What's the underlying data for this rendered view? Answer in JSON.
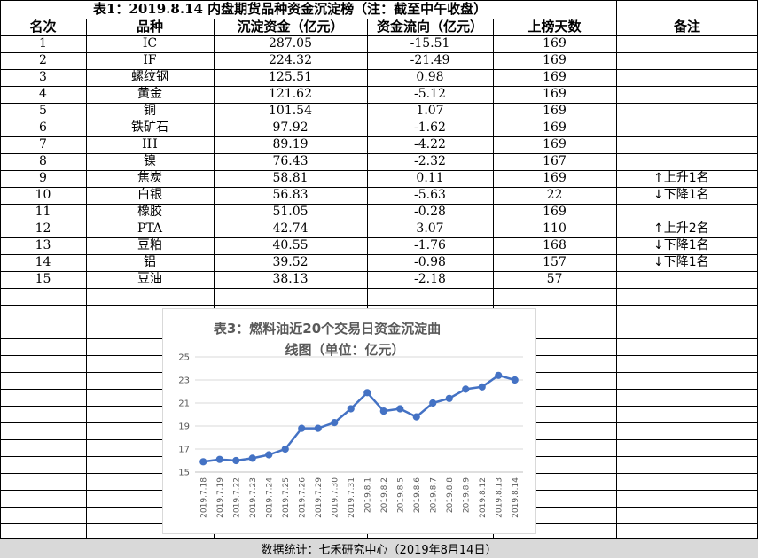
{
  "title": "表1：2019.8.14 内盘期货品种资金沉淀榜（注：截至中午收盘）",
  "headers": [
    "名次",
    "品种",
    "沉淀资金（亿元）",
    "资金流向（亿元）",
    "上榜天数",
    "备注"
  ],
  "rows": [
    [
      "1",
      "IC",
      "287.05",
      "-15.51",
      "169",
      ""
    ],
    [
      "2",
      "IF",
      "224.32",
      "-21.49",
      "169",
      ""
    ],
    [
      "3",
      "螺纹钢",
      "125.51",
      "0.98",
      "169",
      ""
    ],
    [
      "4",
      "黄金",
      "121.62",
      "-5.12",
      "169",
      ""
    ],
    [
      "5",
      "铜",
      "101.54",
      "1.07",
      "169",
      ""
    ],
    [
      "6",
      "铁矿石",
      "97.92",
      "-1.62",
      "169",
      ""
    ],
    [
      "7",
      "IH",
      "89.19",
      "-4.22",
      "169",
      ""
    ],
    [
      "8",
      "镍",
      "76.43",
      "-2.32",
      "167",
      ""
    ],
    [
      "9",
      "焦炭",
      "58.81",
      "0.11",
      "169",
      "↑上升1名"
    ],
    [
      "10",
      "白银",
      "56.83",
      "-5.63",
      "22",
      "↓下降1名"
    ],
    [
      "11",
      "橡胶",
      "51.05",
      "-0.28",
      "169",
      ""
    ],
    [
      "12",
      "PTA",
      "42.74",
      "3.07",
      "110",
      "↑上升2名"
    ],
    [
      "13",
      "豆粕",
      "40.55",
      "-1.76",
      "168",
      "↓下降1名"
    ],
    [
      "14",
      "铝",
      "39.52",
      "-0.98",
      "157",
      "↓下降1名"
    ],
    [
      "15",
      "豆油",
      "38.13",
      "-2.18",
      "57",
      ""
    ]
  ],
  "footer": "数据统计：七禾研究中心（2019年8月14日）",
  "chart_data": {
    "type": "line",
    "title_lines": [
      "表3：燃料油近20个交易日资金沉淀曲",
      "线图（单位：亿元）"
    ],
    "categories": [
      "2019.7.18",
      "2019.7.19",
      "2019.7.22",
      "2019.7.23",
      "2019.7.24",
      "2019.7.25",
      "2019.7.26",
      "2019.7.29",
      "2019.7.30",
      "2019.7.31",
      "2019.8.1",
      "2019.8.2",
      "2019.8.5",
      "2019.8.6",
      "2019.8.7",
      "2019.8.8",
      "2019.8.9",
      "2019.8.12",
      "2019.8.13",
      "2019.8.14"
    ],
    "values": [
      15.9,
      16.1,
      16.0,
      16.2,
      16.5,
      17.0,
      18.8,
      18.8,
      19.3,
      20.5,
      21.9,
      20.3,
      20.5,
      19.8,
      21.0,
      21.4,
      22.2,
      22.4,
      23.4,
      23.0
    ],
    "yticks": [
      "15",
      "17",
      "19",
      "21",
      "23",
      "25"
    ],
    "ylim": [
      15,
      25
    ],
    "line_color": "#4472c4"
  }
}
